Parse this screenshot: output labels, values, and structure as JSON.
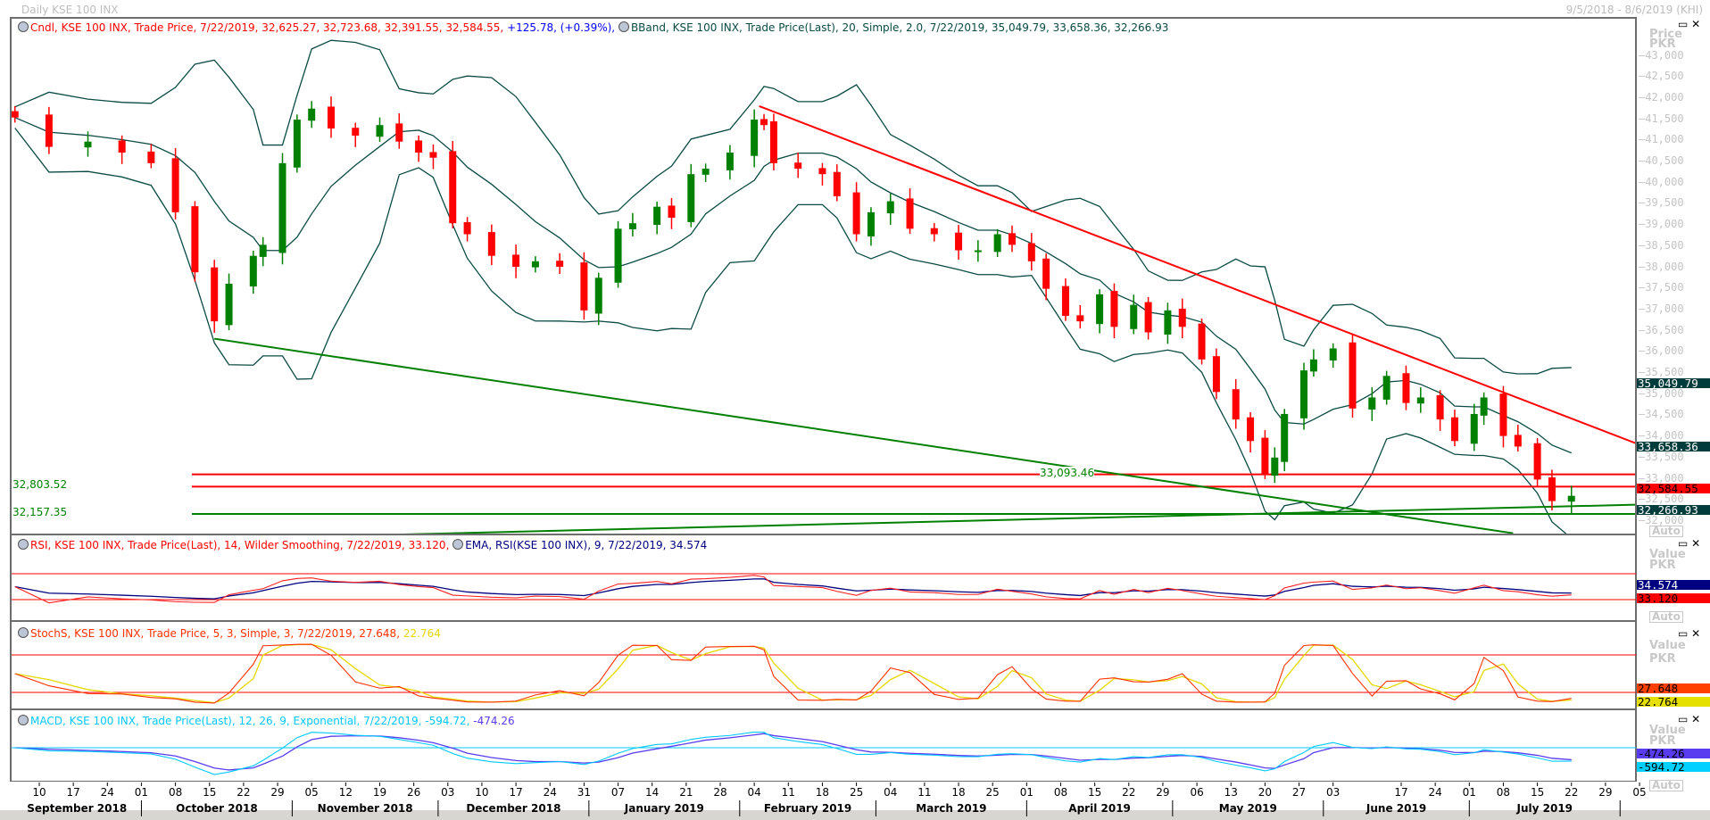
{
  "window": {
    "title": "Daily KSE 100 INX",
    "date_range": "9/5/2018 - 8/6/2019 (KHI)"
  },
  "main_panel": {
    "legend_cndl": "Cndl, KSE 100 INX, Trade Price, 7/22/2019, 32,625.27, 32,723.68, 32,391.55, 32,584.55,",
    "legend_change": "+125.78, (+0.39%),",
    "legend_bband": "BBand, KSE 100 INX, Trade Price(Last),  20, Simple, 2.0, 7/22/2019, 35,049.79, 33,658.36, 32,266.93",
    "axis_title": "Price",
    "axis_unit": "PKR",
    "auto_label": "Auto",
    "value_boxes": [
      {
        "text": "35,049.79",
        "price": 35049.79,
        "bg": "#003c3c",
        "fg": "#ffffff"
      },
      {
        "text": "33,658.36",
        "price": 33658.36,
        "bg": "#003c3c",
        "fg": "#ffffff"
      },
      {
        "text": "32,584.55",
        "price": 32584.55,
        "bg": "#ff0000",
        "fg": "#000000"
      },
      {
        "text": "32,266.93",
        "price": 32266.93,
        "bg": "#003c3c",
        "fg": "#ffffff"
      }
    ],
    "level_labels": [
      {
        "text": "32,803.52",
        "price": 32803.52
      },
      {
        "text": "32,157.35",
        "price": 32157.35
      },
      {
        "text": "33,093.46",
        "price": 33093.46
      }
    ]
  },
  "rsi_panel": {
    "legend_rsi": "RSI, KSE 100 INX, Trade Price(Last),  14, Wilder Smoothing, 7/22/2019, 33.120,",
    "legend_ema": "EMA, RSI(KSE 100 INX),  9, 7/22/2019, 34.574",
    "axis_title": "Value",
    "axis_unit": "PKR",
    "auto_label": "Auto",
    "box_ema": "34.574",
    "box_rsi": "33.120"
  },
  "stoch_panel": {
    "legend": "StochS, KSE 100 INX, Trade Price,  5, 3, Simple, 3, 7/22/2019, 27.648,",
    "legend_d": "22.764",
    "axis_title": "Value",
    "axis_unit": "PKR",
    "auto_label": "Auto",
    "box_k": "27.648",
    "box_d": "22.764"
  },
  "macd_panel": {
    "legend": "MACD, KSE 100 INX, Trade Price(Last),  12, 26, 9, Exponential, 7/22/2019, -594.72,",
    "legend_signal": "-474.26",
    "axis_title": "Value",
    "axis_unit": "PKR",
    "auto_label": "Auto",
    "box_signal": "-474.26",
    "box_macd": "-594.72"
  },
  "colors": {
    "up": "#008000",
    "down": "#ff0000",
    "bband": "#0b4a44",
    "rsi": "#ff2020",
    "ema": "#000080",
    "stoch_k": "#ff3000",
    "stoch_d": "#e6d800",
    "macd": "#00c8ff",
    "signal": "#5a3cf0"
  },
  "chart_data": {
    "type": "candlestick",
    "title": "Daily KSE 100 INX",
    "ylabel": "Price PKR",
    "ylim": [
      32000,
      43000
    ],
    "y_ticks": [
      "43,000",
      "42,500",
      "42,000",
      "41,500",
      "41,000",
      "40,500",
      "40,000",
      "39,500",
      "39,000",
      "38,500",
      "38,000",
      "37,500",
      "37,000",
      "36,500",
      "36,000",
      "35,500",
      "35,000",
      "34,500",
      "34,000",
      "33,500",
      "33,000",
      "32,500",
      "32,000"
    ],
    "series_close": [
      [
        "2018-09-05",
        41530
      ],
      [
        "2018-09-12",
        40835
      ],
      [
        "2018-09-20",
        40960
      ],
      [
        "2018-09-27",
        40700
      ],
      [
        "2018-10-03",
        40450
      ],
      [
        "2018-10-08",
        39290
      ],
      [
        "2018-10-12",
        37870
      ],
      [
        "2018-10-16",
        36710
      ],
      [
        "2018-10-19",
        37600
      ],
      [
        "2018-10-24",
        38260
      ],
      [
        "2018-10-26",
        38520
      ],
      [
        "2018-10-30",
        40450
      ],
      [
        "2018-11-02",
        41480
      ],
      [
        "2018-11-05",
        41740
      ],
      [
        "2018-11-09",
        41270
      ],
      [
        "2018-11-14",
        41100
      ],
      [
        "2018-11-19",
        41350
      ],
      [
        "2018-11-23",
        40960
      ],
      [
        "2018-11-27",
        40700
      ],
      [
        "2018-11-30",
        40580
      ],
      [
        "2018-12-04",
        39030
      ],
      [
        "2018-12-07",
        38770
      ],
      [
        "2018-12-12",
        38260
      ],
      [
        "2018-12-17",
        38000
      ],
      [
        "2018-12-21",
        38130
      ],
      [
        "2018-12-26",
        38000
      ],
      [
        "2018-12-31",
        36970
      ],
      [
        "2019-01-03",
        37740
      ],
      [
        "2019-01-07",
        38900
      ],
      [
        "2019-01-10",
        39030
      ],
      [
        "2019-01-15",
        39420
      ],
      [
        "2019-01-18",
        39160
      ],
      [
        "2019-01-22",
        40190
      ],
      [
        "2019-01-25",
        40320
      ],
      [
        "2019-01-30",
        40700
      ],
      [
        "2019-02-04",
        41480
      ],
      [
        "2019-02-06",
        41350
      ],
      [
        "2019-02-08",
        40450
      ],
      [
        "2019-02-13",
        40320
      ],
      [
        "2019-02-18",
        40190
      ],
      [
        "2019-02-21",
        39670
      ],
      [
        "2019-02-25",
        38770
      ],
      [
        "2019-02-28",
        39290
      ],
      [
        "2019-03-04",
        39550
      ],
      [
        "2019-03-08",
        38900
      ],
      [
        "2019-03-13",
        38770
      ],
      [
        "2019-03-18",
        38390
      ],
      [
        "2019-03-22",
        38390
      ],
      [
        "2019-03-26",
        38770
      ],
      [
        "2019-03-29",
        38520
      ],
      [
        "2019-04-02",
        38130
      ],
      [
        "2019-04-05",
        37480
      ],
      [
        "2019-04-09",
        36840
      ],
      [
        "2019-04-12",
        36710
      ],
      [
        "2019-04-16",
        37350
      ],
      [
        "2019-04-19",
        36580
      ],
      [
        "2019-04-23",
        37100
      ],
      [
        "2019-04-26",
        36450
      ],
      [
        "2019-04-30",
        36970
      ],
      [
        "2019-05-03",
        36580
      ],
      [
        "2019-05-07",
        35810
      ],
      [
        "2019-05-10",
        35040
      ],
      [
        "2019-05-14",
        34390
      ],
      [
        "2019-05-17",
        33880
      ],
      [
        "2019-05-20",
        33100
      ],
      [
        "2019-05-22",
        33490
      ],
      [
        "2019-05-24",
        34520
      ],
      [
        "2019-05-28",
        35550
      ],
      [
        "2019-05-30",
        35810
      ],
      [
        "2019-06-03",
        36070
      ],
      [
        "2019-06-07",
        34650
      ],
      [
        "2019-06-11",
        34910
      ],
      [
        "2019-06-14",
        35420
      ],
      [
        "2019-06-18",
        34780
      ],
      [
        "2019-06-21",
        34910
      ],
      [
        "2019-06-25",
        34390
      ],
      [
        "2019-06-28",
        33880
      ],
      [
        "2019-07-02",
        34520
      ],
      [
        "2019-07-04",
        34910
      ],
      [
        "2019-07-08",
        34000
      ],
      [
        "2019-07-11",
        33750
      ],
      [
        "2019-07-15",
        32970
      ],
      [
        "2019-07-18",
        32460
      ],
      [
        "2019-07-22",
        32584.55
      ]
    ],
    "trendlines": [
      {
        "color": "#ff0000",
        "from": [
          "2019-02-05",
          41800
        ],
        "to": [
          "2019-08-06",
          33750
        ]
      },
      {
        "color": "#008000",
        "from": [
          "2018-10-16",
          36300
        ],
        "to": [
          "2019-07-10",
          31700
        ]
      },
      {
        "color": "#008000",
        "from": [
          "2018-09-05",
          31450
        ],
        "to": [
          "2019-08-06",
          32380
        ]
      }
    ],
    "levels": [
      {
        "color": "#ff0000",
        "value": 33093.46
      },
      {
        "color": "#ff0000",
        "value": 32803.52
      },
      {
        "color": "#008000",
        "value": 32157.35
      }
    ],
    "rsi_levels": [
      70,
      30
    ],
    "stoch_levels": [
      80,
      20
    ],
    "x_ticks": [
      [
        "2018-09-10",
        "10"
      ],
      [
        "2018-09-17",
        "17"
      ],
      [
        "2018-09-24",
        "24"
      ],
      [
        "2018-10-01",
        "01"
      ],
      [
        "2018-10-08",
        "08"
      ],
      [
        "2018-10-15",
        "15"
      ],
      [
        "2018-10-22",
        "22"
      ],
      [
        "2018-10-29",
        "29"
      ],
      [
        "2018-11-05",
        "05"
      ],
      [
        "2018-11-12",
        "12"
      ],
      [
        "2018-11-19",
        "19"
      ],
      [
        "2018-11-26",
        "26"
      ],
      [
        "2018-12-03",
        "03"
      ],
      [
        "2018-12-10",
        "10"
      ],
      [
        "2018-12-17",
        "17"
      ],
      [
        "2018-12-24",
        "24"
      ],
      [
        "2018-12-31",
        "31"
      ],
      [
        "2019-01-07",
        "07"
      ],
      [
        "2019-01-14",
        "14"
      ],
      [
        "2019-01-21",
        "21"
      ],
      [
        "2019-01-28",
        "28"
      ],
      [
        "2019-02-04",
        "04"
      ],
      [
        "2019-02-11",
        "11"
      ],
      [
        "2019-02-18",
        "18"
      ],
      [
        "2019-02-25",
        "25"
      ],
      [
        "2019-03-04",
        "04"
      ],
      [
        "2019-03-11",
        "11"
      ],
      [
        "2019-03-18",
        "18"
      ],
      [
        "2019-03-25",
        "25"
      ],
      [
        "2019-04-01",
        "01"
      ],
      [
        "2019-04-08",
        "08"
      ],
      [
        "2019-04-15",
        "15"
      ],
      [
        "2019-04-22",
        "22"
      ],
      [
        "2019-04-29",
        "29"
      ],
      [
        "2019-05-06",
        "06"
      ],
      [
        "2019-05-13",
        "13"
      ],
      [
        "2019-05-20",
        "20"
      ],
      [
        "2019-05-27",
        "27"
      ],
      [
        "2019-06-03",
        "03"
      ],
      [
        "2019-06-17",
        "17"
      ],
      [
        "2019-06-24",
        "24"
      ],
      [
        "2019-07-01",
        "01"
      ],
      [
        "2019-07-08",
        "08"
      ],
      [
        "2019-07-15",
        "15"
      ],
      [
        "2019-07-22",
        "22"
      ],
      [
        "2019-07-29",
        "29"
      ],
      [
        "2019-08-05",
        "05"
      ]
    ],
    "months": [
      [
        "2018-09-01",
        "September 2018"
      ],
      [
        "2018-10-01",
        "October 2018"
      ],
      [
        "2018-11-01",
        "November 2018"
      ],
      [
        "2018-12-01",
        "December 2018"
      ],
      [
        "2019-01-01",
        "January 2019"
      ],
      [
        "2019-02-01",
        "February 2019"
      ],
      [
        "2019-03-01",
        "March 2019"
      ],
      [
        "2019-04-01",
        "April 2019"
      ],
      [
        "2019-05-01",
        "May 2019"
      ],
      [
        "2019-06-01",
        "June 2019"
      ],
      [
        "2019-07-01",
        "July 2019"
      ],
      [
        "2019-08-01",
        ""
      ]
    ]
  }
}
